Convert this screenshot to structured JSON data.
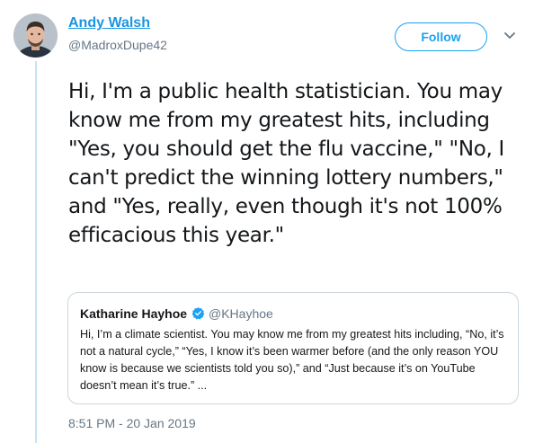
{
  "author": {
    "name": "Andy Walsh",
    "handle": "@MadroxDupe42"
  },
  "follow_button": {
    "label": "Follow"
  },
  "tweet": {
    "text": "Hi, I'm a public health statistician. You may know me from my greatest hits, including \"Yes, you should get the flu vaccine,\" \"No, I can't predict the winning lottery numbers,\" and \"Yes, really, even though it's not 100% efficacious this year.\"",
    "timestamp": "8:51 PM - 20 Jan 2019"
  },
  "quoted_tweet": {
    "author_name": "Katharine Hayhoe",
    "author_handle": "@KHayhoe",
    "verified": true,
    "text": "Hi, I’m a climate scientist. You may know me from my greatest hits including, “No, it’s not a natural cycle,” “Yes, I know it’s been warmer before (and the only reason YOU know is because we scientists told you so),” and “Just because it’s on YouTube doesn’t mean it’s true.” ..."
  },
  "colors": {
    "accent": "#1da1f2",
    "link": "#1b95e0",
    "secondary_text": "#657786",
    "thread_line": "#c4e4f7",
    "border": "#ccd6dd"
  },
  "icons": {
    "caret": "chevron-down-icon",
    "verified": "verified-badge-icon"
  }
}
